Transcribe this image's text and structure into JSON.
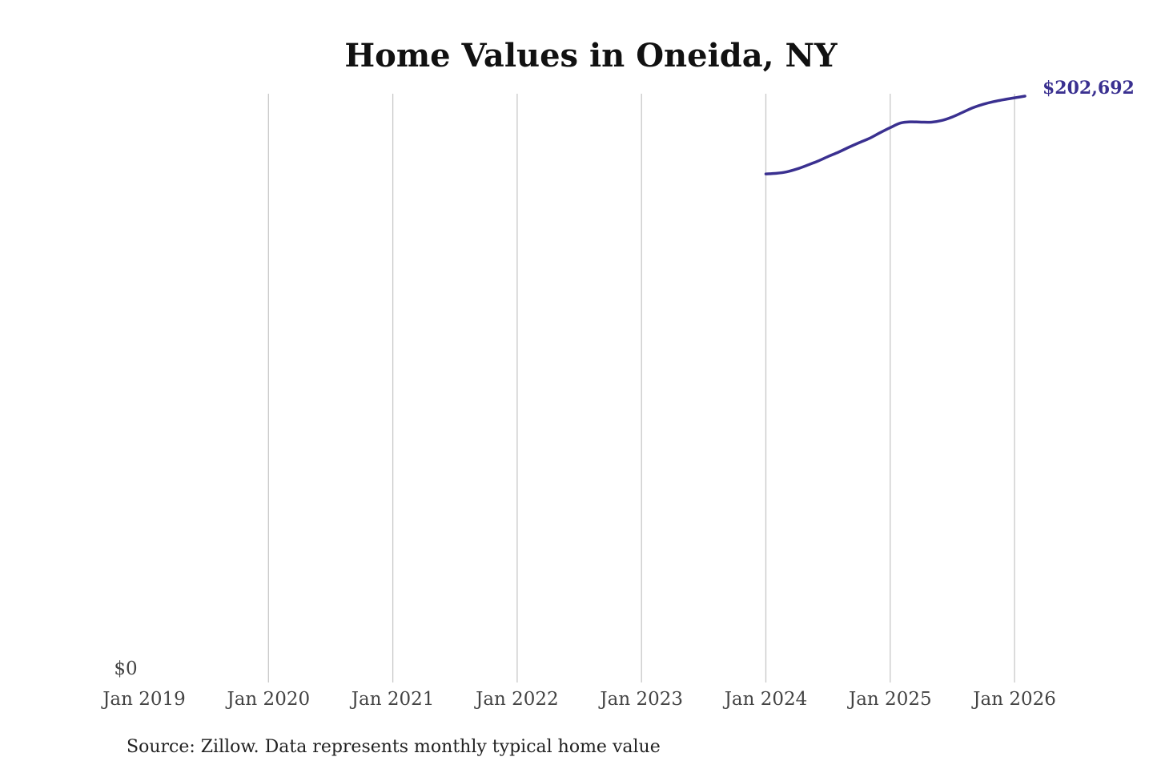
{
  "chart_data": {
    "type": "line",
    "title": "Home Values in Oneida, NY",
    "xlabel": "",
    "ylabel": "",
    "x_ticks": [
      "Jan 2019",
      "Jan 2020",
      "Jan 2021",
      "Jan 2022",
      "Jan 2023",
      "Jan 2024",
      "Jan 2025",
      "Jan 2026"
    ],
    "y_ticks": [
      "$0"
    ],
    "xlim": [
      "2019-01",
      "2026-02"
    ],
    "ylim": [
      0,
      202692
    ],
    "grid": "vertical",
    "series": [
      {
        "name": "Typical home value",
        "color": "#3a3090",
        "x": [
          "2024-01",
          "2024-02",
          "2024-03",
          "2024-04",
          "2024-05",
          "2024-06",
          "2024-07",
          "2024-08",
          "2024-09",
          "2024-10",
          "2024-11",
          "2024-12",
          "2025-01",
          "2025-02",
          "2025-03",
          "2025-04",
          "2025-05",
          "2025-06",
          "2025-07",
          "2025-08",
          "2025-09",
          "2025-10",
          "2025-11",
          "2025-12",
          "2026-01",
          "2026-02"
        ],
        "values": [
          175800,
          176000,
          176500,
          177500,
          178800,
          180200,
          181800,
          183300,
          185000,
          186600,
          188100,
          190000,
          191800,
          193400,
          193800,
          193700,
          193700,
          194300,
          195500,
          197100,
          198700,
          199900,
          200800,
          201500,
          202100,
          202692
        ]
      }
    ],
    "end_label": "$202,692",
    "source": "Source: Zillow. Data represents monthly typical home value"
  }
}
